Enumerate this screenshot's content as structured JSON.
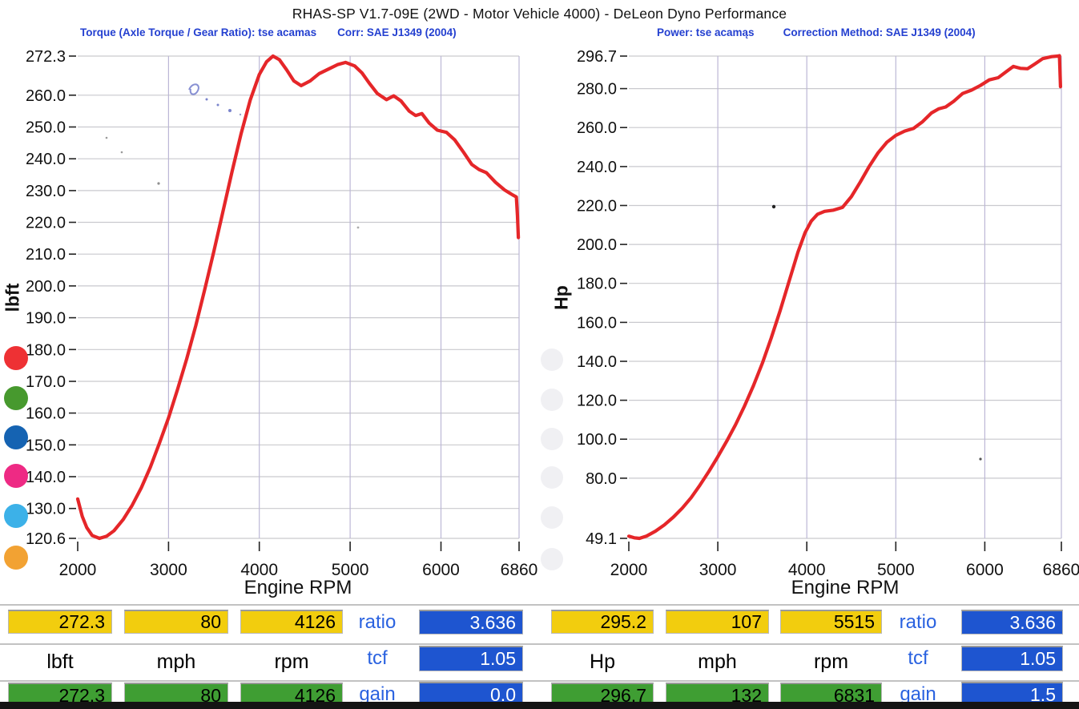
{
  "title": "RHAS-SP V1.7-09E  (2WD - Motor Vehicle 4000) - DeLeon Dyno Performance",
  "chart_data": [
    {
      "type": "line",
      "title": "Torque (Axle Torque / Gear Ratio): tse acamas",
      "corr": "Corr: SAE J1349 (2004)",
      "xlabel": "Engine RPM",
      "ylabel": "lbft",
      "grid": true,
      "legend_position": "none",
      "xlim": [
        2000,
        6860
      ],
      "ylim": [
        120.6,
        272.3
      ],
      "xticks": [
        2000,
        3000,
        4000,
        5000,
        6000,
        6860
      ],
      "xtick_labels": [
        "2000",
        "3000",
        "4000",
        "5000",
        "6000",
        "6860"
      ],
      "yticks": [
        272.3,
        260,
        250,
        240,
        230,
        220,
        210,
        200,
        190,
        180,
        170,
        160,
        150,
        140,
        130,
        120.6
      ],
      "ytick_labels": [
        "272.3",
        "260.0",
        "250.0",
        "240.0",
        "230.0",
        "220.0",
        "210.0",
        "200.0",
        "190.0",
        "180.0",
        "170.0",
        "160.0",
        "150.0",
        "140.0",
        "130.0",
        "120.6"
      ],
      "line_color": "#e52629",
      "series": [
        {
          "name": "torque",
          "points": [
            [
              2000,
              133
            ],
            [
              2050,
              127.5
            ],
            [
              2100,
              124
            ],
            [
              2160,
              121.5
            ],
            [
              2240,
              120.6
            ],
            [
              2320,
              121.3
            ],
            [
              2400,
              123
            ],
            [
              2500,
              126.5
            ],
            [
              2600,
              131
            ],
            [
              2700,
              136.5
            ],
            [
              2800,
              143
            ],
            [
              2900,
              150.5
            ],
            [
              3000,
              158.5
            ],
            [
              3100,
              167.5
            ],
            [
              3200,
              177
            ],
            [
              3300,
              187.5
            ],
            [
              3400,
              199
            ],
            [
              3500,
              211
            ],
            [
              3600,
              223.5
            ],
            [
              3700,
              236
            ],
            [
              3800,
              248
            ],
            [
              3900,
              258.5
            ],
            [
              4000,
              266.5
            ],
            [
              4080,
              270.5
            ],
            [
              4150,
              272.3
            ],
            [
              4220,
              271.2
            ],
            [
              4300,
              268
            ],
            [
              4380,
              264.5
            ],
            [
              4460,
              263
            ],
            [
              4560,
              264.5
            ],
            [
              4660,
              266.8
            ],
            [
              4760,
              268.2
            ],
            [
              4860,
              269.6
            ],
            [
              4950,
              270.3
            ],
            [
              5050,
              269.2
            ],
            [
              5130,
              267
            ],
            [
              5210,
              263.8
            ],
            [
              5300,
              260.5
            ],
            [
              5400,
              258.6
            ],
            [
              5480,
              259.8
            ],
            [
              5560,
              258.2
            ],
            [
              5650,
              255
            ],
            [
              5720,
              253.6
            ],
            [
              5790,
              254.2
            ],
            [
              5870,
              251.2
            ],
            [
              5960,
              249
            ],
            [
              6060,
              248.3
            ],
            [
              6150,
              246
            ],
            [
              6250,
              242
            ],
            [
              6340,
              238.2
            ],
            [
              6420,
              236.6
            ],
            [
              6500,
              235.6
            ],
            [
              6600,
              232.6
            ],
            [
              6700,
              230.2
            ],
            [
              6790,
              228.6
            ],
            [
              6830,
              228
            ],
            [
              6842,
              222
            ],
            [
              6852,
              215.2
            ]
          ]
        }
      ]
    },
    {
      "type": "line",
      "title": "Power: tse acamąs",
      "corr": "Correction Method: SAE J1349 (2004)",
      "xlabel": "Engine RPM",
      "ylabel": "Hp",
      "grid": true,
      "legend_position": "none",
      "xlim": [
        2000,
        6860
      ],
      "ylim": [
        49.1,
        296.7
      ],
      "xticks": [
        2000,
        3000,
        4000,
        5000,
        6000,
        6860
      ],
      "xtick_labels": [
        "2000",
        "3000",
        "4000",
        "5000",
        "6000",
        "6860"
      ],
      "yticks": [
        296.7,
        280,
        260,
        240,
        220,
        200,
        180,
        160,
        140,
        120,
        100,
        80,
        49.1
      ],
      "ytick_labels": [
        "296.7",
        "280.0",
        "260.0",
        "240.0",
        "220.0",
        "200.0",
        "180.0",
        "160.0",
        "140.0",
        "120.0",
        "100.0",
        "80.0",
        "49.1"
      ],
      "line_color": "#e52629",
      "series": [
        {
          "name": "power",
          "points": [
            [
              2000,
              50.2
            ],
            [
              2060,
              49.4
            ],
            [
              2120,
              49.1
            ],
            [
              2200,
              50.3
            ],
            [
              2300,
              52.8
            ],
            [
              2400,
              56
            ],
            [
              2500,
              60
            ],
            [
              2600,
              64.6
            ],
            [
              2700,
              70
            ],
            [
              2800,
              76.5
            ],
            [
              2900,
              83.5
            ],
            [
              3000,
              91
            ],
            [
              3100,
              99
            ],
            [
              3200,
              107.5
            ],
            [
              3300,
              117
            ],
            [
              3400,
              127.5
            ],
            [
              3500,
              139
            ],
            [
              3600,
              152
            ],
            [
              3700,
              166
            ],
            [
              3800,
              181
            ],
            [
              3900,
              196
            ],
            [
              3980,
              206
            ],
            [
              4050,
              212
            ],
            [
              4120,
              215.5
            ],
            [
              4200,
              217
            ],
            [
              4300,
              217.6
            ],
            [
              4400,
              219
            ],
            [
              4500,
              224.5
            ],
            [
              4600,
              232
            ],
            [
              4700,
              240
            ],
            [
              4800,
              247
            ],
            [
              4900,
              252.5
            ],
            [
              5000,
              256
            ],
            [
              5100,
              258.2
            ],
            [
              5200,
              259.6
            ],
            [
              5300,
              263
            ],
            [
              5400,
              267.5
            ],
            [
              5480,
              269.6
            ],
            [
              5560,
              270.6
            ],
            [
              5650,
              273.5
            ],
            [
              5750,
              277.5
            ],
            [
              5850,
              279.2
            ],
            [
              5950,
              281.6
            ],
            [
              6050,
              284.5
            ],
            [
              6150,
              285.6
            ],
            [
              6250,
              289
            ],
            [
              6320,
              291.4
            ],
            [
              6400,
              290.4
            ],
            [
              6480,
              290.2
            ],
            [
              6560,
              292.6
            ],
            [
              6650,
              295.4
            ],
            [
              6750,
              296.4
            ],
            [
              6820,
              296.7
            ],
            [
              6838,
              296.9
            ],
            [
              6850,
              281
            ]
          ]
        }
      ]
    }
  ],
  "legend_dots": [
    "#ee3134",
    "#47992e",
    "#1563b2",
    "#ee2a84",
    "#3cb1e8",
    "#f2a233"
  ],
  "panel_left": {
    "row1": [
      "272.3",
      "80",
      "4126"
    ],
    "labels": [
      "lbft",
      "mph",
      "rpm"
    ],
    "row3": [
      "272.3",
      "80",
      "4126"
    ],
    "stats": [
      {
        "label": "ratio",
        "value": "3.636"
      },
      {
        "label": "tcf",
        "value": "1.05"
      },
      {
        "label": "gain",
        "value": "0.0"
      }
    ]
  },
  "panel_right": {
    "row1": [
      "295.2",
      "107",
      "5515"
    ],
    "labels": [
      "Hp",
      "mph",
      "rpm"
    ],
    "row3": [
      "296.7",
      "132",
      "6831"
    ],
    "stats": [
      {
        "label": "ratio",
        "value": "3.636"
      },
      {
        "label": "tcf",
        "value": "1.05"
      },
      {
        "label": "gain",
        "value": "1.5"
      }
    ]
  },
  "colors": {
    "curve": "#e52629",
    "box_yellow": "#f2cd0e",
    "box_green": "#3f9e33",
    "box_blue": "#1e55d0",
    "header_blue": "#2440d0"
  }
}
